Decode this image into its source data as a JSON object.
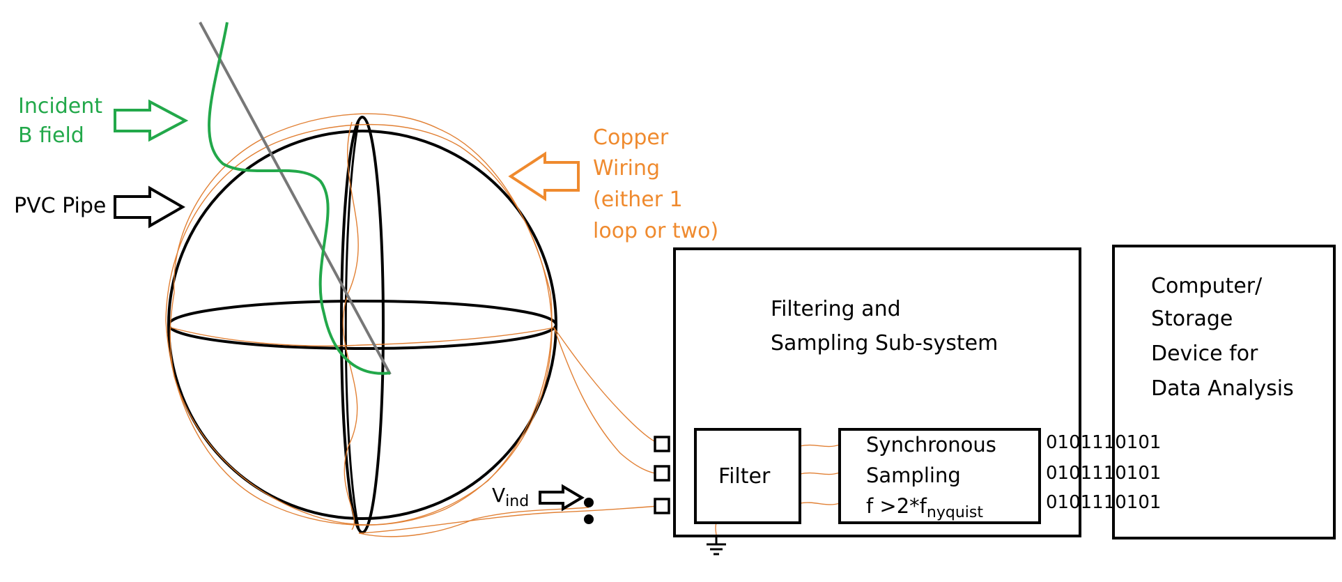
{
  "labels": {
    "incident_line1": "Incident",
    "incident_line2": "B field",
    "pvc_pipe": "PVC Pipe",
    "copper_line1": "Copper",
    "copper_line2": "Wiring",
    "copper_line3": "(either 1",
    "copper_line4": "loop or two)",
    "v_main": "V",
    "v_sub": "ind"
  },
  "subsystem": {
    "title_line1": "Filtering and",
    "title_line2": "Sampling Sub-system",
    "filter": "Filter",
    "sync_line1": "Synchronous",
    "sync_line2": "Sampling",
    "sync_line3_main": "f >2*f",
    "sync_line3_sub": "nyquist",
    "bits": [
      "0101110101",
      "0101110101",
      "0101110101"
    ]
  },
  "computer": {
    "line1": "Computer/",
    "line2": "Storage",
    "line3": "Device for",
    "line4": "Data Analysis"
  },
  "colors": {
    "green": "#22a84a",
    "orange": "#ef8a2e",
    "black": "#000000"
  }
}
